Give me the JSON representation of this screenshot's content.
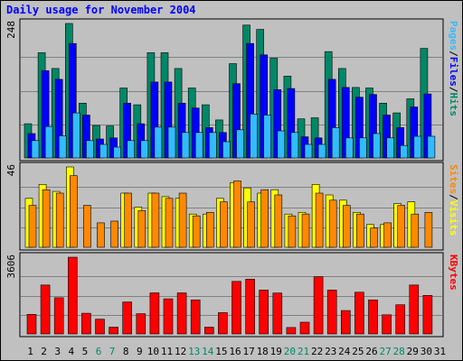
{
  "title": "Daily usage for November 2004",
  "chart_data": {
    "type": "bar",
    "title": "Daily usage for November 2004",
    "categories": [
      "1",
      "2",
      "3",
      "4",
      "5",
      "6",
      "7",
      "8",
      "9",
      "10",
      "11",
      "12",
      "13",
      "14",
      "15",
      "16",
      "17",
      "18",
      "19",
      "20",
      "21",
      "22",
      "23",
      "24",
      "25",
      "26",
      "27",
      "28",
      "29",
      "30",
      "31"
    ],
    "weekend_days": [
      "6",
      "7",
      "13",
      "14",
      "20",
      "21",
      "27",
      "28"
    ],
    "panels": [
      {
        "id": "hits",
        "ymax_label": "248",
        "ymax": 248,
        "legend": [
          {
            "text": "Pages",
            "color": "#33bbff"
          },
          {
            "text": "/",
            "color": "#000000"
          },
          {
            "text": "Files",
            "color": "#0000ff"
          },
          {
            "text": "/",
            "color": "#000000"
          },
          {
            "text": "Hits",
            "color": "#008866"
          }
        ],
        "series": [
          {
            "name": "Hits",
            "color": "#008866",
            "values": [
              63,
              194,
              165,
              248,
              101,
              60,
              59,
              129,
              98,
              194,
              194,
              165,
              129,
              98,
              70,
              174,
              245,
              237,
              184,
              151,
              72,
              74,
              196,
              165,
              130,
              129,
              101,
              83,
              109,
              202,
              0
            ]
          },
          {
            "name": "Files",
            "color": "#0000ff",
            "values": [
              45,
              161,
              145,
              211,
              79,
              35,
              37,
              101,
              63,
              140,
              140,
              101,
              92,
              56,
              47,
              137,
              211,
              190,
              126,
              128,
              39,
              37,
              145,
              130,
              112,
              117,
              79,
              56,
              94,
              118,
              0
            ]
          },
          {
            "name": "Pages",
            "color": "#33bbff",
            "values": [
              32,
              58,
              41,
              83,
              32,
              25,
              20,
              32,
              32,
              57,
              57,
              47,
              47,
              47,
              30,
              52,
              81,
              79,
              50,
              47,
              25,
              25,
              56,
              37,
              37,
              45,
              37,
              23,
              40,
              40,
              0
            ]
          }
        ]
      },
      {
        "id": "visits",
        "ymax_label": "46",
        "ymax": 46,
        "legend": [
          {
            "text": "Sites",
            "color": "#ff8800"
          },
          {
            "text": "/",
            "color": "#000000"
          },
          {
            "text": "Visits",
            "color": "#ffff00"
          }
        ],
        "series": [
          {
            "name": "Visits",
            "color": "#ffff00",
            "values": [
              28,
              36,
              32,
              46,
              0,
              0,
              0,
              31,
              23,
              31,
              29,
              28,
              19,
              19,
              28,
              37,
              34,
              31,
              33,
              19,
              20,
              36,
              30,
              27,
              20,
              13,
              13,
              25,
              26,
              0,
              0
            ]
          },
          {
            "name": "Sites",
            "color": "#ff8800",
            "values": [
              24,
              33,
              31,
              41,
              24,
              14,
              15,
              31,
              21,
              31,
              28,
              31,
              18,
              20,
              26,
              38,
              26,
              33,
              30,
              18,
              19,
              31,
              27,
              24,
              19,
              11,
              14,
              24,
              19,
              20,
              0
            ]
          }
        ]
      },
      {
        "id": "kbytes",
        "ymax_label": "3606",
        "ymax": 3606,
        "legend": [
          {
            "text": "KBytes",
            "color": "#ff0000"
          }
        ],
        "series": [
          {
            "name": "KBytes",
            "color": "#ff0000",
            "values": [
              920,
              2300,
              1700,
              3606,
              970,
              690,
              320,
              1500,
              950,
              1930,
              1650,
              1930,
              1600,
              320,
              1000,
              2470,
              2570,
              2060,
              1920,
              300,
              550,
              2690,
              2060,
              1100,
              1960,
              1600,
              900,
              1370,
              2300,
              1810,
              0
            ]
          }
        ]
      }
    ]
  }
}
